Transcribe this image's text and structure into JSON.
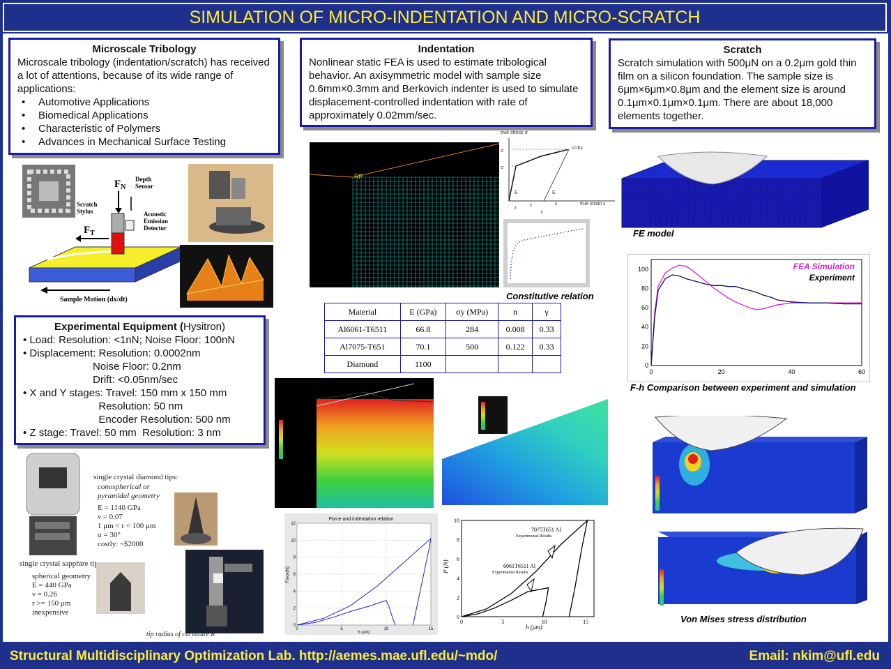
{
  "title": "SIMULATION OF MICRO-INDENTATION AND MICRO-SCRATCH",
  "boxes": {
    "tribology": {
      "heading": "Microscale Tribology",
      "text": " Microscale tribology (indentation/scratch) has received a lot of attentions, because of its wide range of applications:",
      "items": [
        "Automotive Applications",
        "Biomedical Applications",
        "Characteristic of Polymers",
        "Advances in Mechanical Surface Testing"
      ]
    },
    "indentation": {
      "heading": "Indentation",
      "text": "Nonlinear static FEA is used to estimate tribological behavior. An axisymmetric model with sample size 0.6mm×0.3mm and Berkovich indenter is used to simulate displacement-controlled indentation with rate of approximately 0.02mm/sec."
    },
    "scratch": {
      "heading": "Scratch",
      "text": "Scratch simulation with 500μN on a 0.2μm gold thin film on a silicon foundation. The sample size is 6μm×6μm×0.8μm and the element size is around 0.1μm×0.1μm×0.1μm. There are about 18,000 elements together."
    },
    "equipment": {
      "heading_bold": "Experimental Equipment (",
      "heading_normal": "Hysitron)",
      "lines": [
        "• Load: Resolution: <1nN; Noise Floor: 100nN",
        "• Displacement: Resolution: 0.0002nm",
        "                        Noise Floor: 0.2nm",
        "                        Drift: <0.05nm/sec",
        "• X and Y stages: Travel: 150 mm x 150 mm",
        "                          Resolution: 50 nm",
        "                          Encoder Resolution: 500 nm",
        "• Z stage: Travel: 50 mm  Resolution: 3 nm"
      ]
    }
  },
  "schematic": {
    "fn": "F",
    "fn_sub": "N",
    "ft": "F",
    "ft_sub": "T",
    "depth": "Depth\nSensor",
    "stylus": "Scratch\nStylus",
    "ae": "Acoustic\nEmission\nDetector",
    "motion": "Sample Motion (dx/dt)"
  },
  "tips": {
    "diamond_title": "single crystal diamond tips:",
    "diamond_sub": "conospherical or pyramidal geometry",
    "diamond_props": [
      "E = 1140 GPa",
      "ν = 0.07",
      "1 μm < r < 100 μm",
      "α = 30°",
      "costly: ~$2000"
    ],
    "sapphire_title": "single crystal sapphire tips:",
    "sapphire_props": [
      "spherical geometry",
      "E = 440 GPa",
      "ν = 0.26",
      "r >= 150 μm",
      "inexpensive"
    ],
    "radius_note": "tip radius of curvature R"
  },
  "fem_label": "RP",
  "constitutive": {
    "caption": "Constitutive relation",
    "labels": [
      "true stress σ",
      "σ=Kε",
      "σ",
      "σ",
      "E",
      "E",
      "true strain ε",
      "ε",
      "ε",
      "ε",
      "ε"
    ]
  },
  "table": {
    "headers": [
      "Material",
      "E (GPa)",
      "σy (MPa)",
      "n",
      "γ"
    ],
    "rows": [
      [
        "Al6061-T6511",
        "66.8",
        "284",
        "0.008",
        "0.33"
      ],
      [
        "Al7075-T651",
        "70.1",
        "500",
        "0.122",
        "0.33"
      ],
      [
        "Diamond",
        "1100",
        "",
        "",
        ""
      ]
    ]
  },
  "fe_model_caption": "FE model",
  "fh_chart": {
    "caption": "F-h Comparison between experiment and simulation",
    "legend_sim": "FEA Simulation",
    "legend_exp": "Experiment",
    "sim_color": "#e020d0",
    "exp_color": "#101060",
    "xlim": [
      0,
      60
    ],
    "ylim": [
      0,
      110
    ],
    "xticks": [
      "0",
      "20",
      "40",
      "60"
    ],
    "yticks": [
      "0",
      "20",
      "40",
      "60",
      "80",
      "100"
    ]
  },
  "chart_data": [
    {
      "type": "line",
      "title": "",
      "xlabel": "",
      "ylabel": "",
      "xlim": [
        0,
        60
      ],
      "ylim": [
        0,
        110
      ],
      "series": [
        {
          "name": "FEA Simulation",
          "x": [
            0,
            1,
            2,
            4,
            6,
            8,
            10,
            12,
            14,
            16,
            18,
            20,
            22,
            24,
            26,
            28,
            30,
            32,
            34,
            36,
            40,
            45,
            50,
            55,
            60
          ],
          "y": [
            0,
            55,
            82,
            96,
            101,
            104,
            103,
            98,
            92,
            86,
            80,
            75,
            70,
            66,
            63,
            60,
            58,
            59,
            61,
            63,
            65,
            65,
            65,
            65,
            65
          ]
        },
        {
          "name": "Experiment",
          "x": [
            0,
            1,
            2,
            4,
            6,
            8,
            10,
            12,
            14,
            16,
            18,
            20,
            22,
            24,
            26,
            28,
            30,
            32,
            34,
            36,
            40,
            45,
            50,
            55,
            60
          ],
          "y": [
            0,
            50,
            78,
            90,
            94,
            93,
            90,
            88,
            86,
            84,
            83,
            83,
            82,
            82,
            80,
            78,
            76,
            73,
            71,
            68,
            66,
            65,
            65,
            64,
            64
          ]
        }
      ]
    },
    {
      "type": "line",
      "title": "Force and indentation relation",
      "xlabel": "h (um)",
      "ylabel": "Force(N)",
      "xlim": [
        0,
        15
      ],
      "ylim": [
        0,
        12
      ],
      "series": [
        {
          "x": [
            0,
            2,
            4,
            6,
            8,
            10,
            10.3,
            10.6,
            11
          ],
          "y": [
            0,
            0.3,
            0.9,
            1.6,
            2.2,
            2.9,
            2.2,
            1.2,
            0
          ]
        },
        {
          "x": [
            0,
            3,
            6,
            9,
            12,
            15,
            14.8,
            14.3,
            13.8,
            13.3,
            13
          ],
          "y": [
            0,
            0.8,
            2.3,
            4.6,
            7.4,
            10.2,
            9.0,
            6.5,
            4.0,
            1.5,
            0
          ]
        }
      ]
    },
    {
      "type": "line",
      "title": "",
      "xlabel": "h (μm)",
      "ylabel": "P (N)",
      "xlim": [
        0,
        16
      ],
      "ylim": [
        0,
        10
      ],
      "series": [
        {
          "name": "6061T6511 Al",
          "x": [
            0,
            2,
            4,
            6,
            8,
            10.5,
            10.2,
            9.8
          ],
          "y": [
            0,
            0.3,
            0.9,
            1.7,
            2.6,
            3.0,
            1.5,
            0
          ]
        },
        {
          "name": "7075T651 Al",
          "x": [
            0,
            3,
            6,
            9,
            12,
            15.2,
            14.5,
            13.7,
            13
          ],
          "y": [
            0,
            0.8,
            2.4,
            4.7,
            7.5,
            10.0,
            7.0,
            3.0,
            0
          ]
        }
      ]
    }
  ],
  "force_chart": {
    "title": "Force and indentation relation",
    "xlabel": "h (um)",
    "ylabel": "Force(N)",
    "xticks": [
      "0",
      "5",
      "10",
      "15"
    ],
    "yticks": [
      "0",
      "2",
      "4",
      "6",
      "8",
      "10",
      "12"
    ]
  },
  "ph_chart": {
    "xlabel": "h (μm)",
    "ylabel": "P (N)",
    "xticks": [
      "0",
      "5",
      "10",
      "15"
    ],
    "yticks": [
      "0",
      "2",
      "4",
      "6",
      "8",
      "10"
    ],
    "label_7075": "7075T651 Al",
    "label_6061": "6061T6511 Al",
    "label_exp": "Experimental Results"
  },
  "vm_caption": "Von Mises stress distribution",
  "footer": {
    "left": "Structural Multidisciplinary Optimization Lab. http://aemes.mae.ufl.edu/~mdo/",
    "right": "Email: nkim@ufl.edu"
  }
}
